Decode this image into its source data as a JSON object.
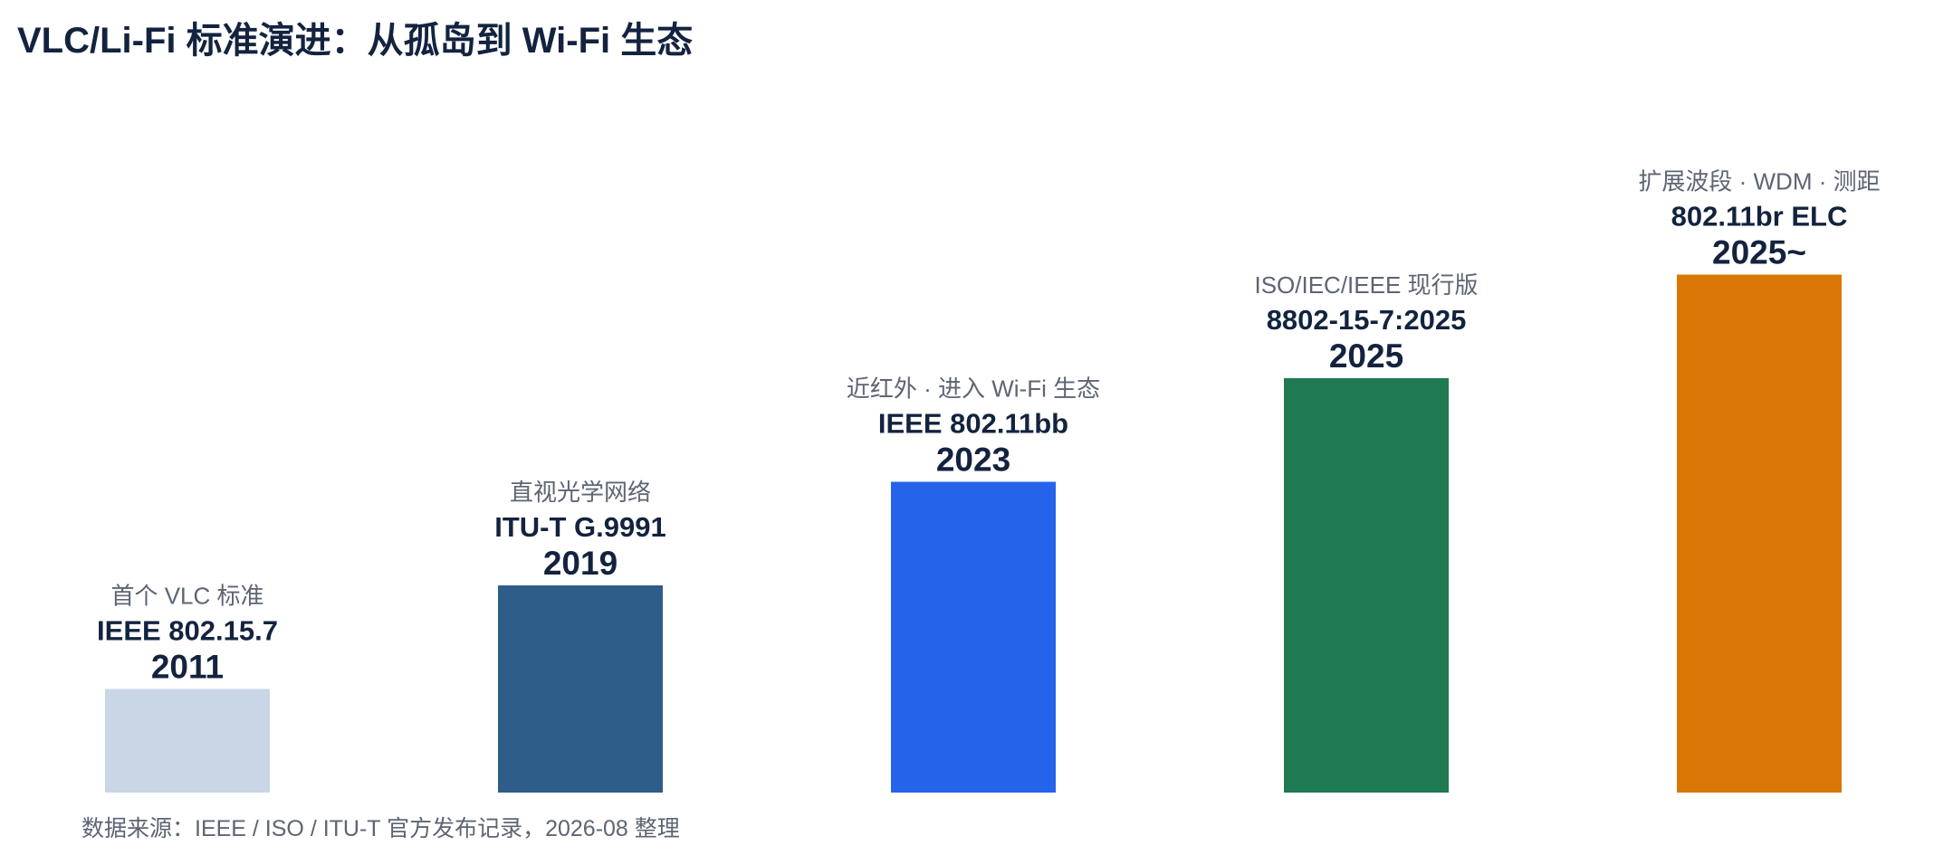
{
  "title": "VLC/Li-Fi 标准演进：从孤岛到 Wi-Fi 生态",
  "footer": "数据来源：IEEE / ISO / ITU-T 官方发布记录，2026-08 整理",
  "chart_data": {
    "type": "bar",
    "title": "VLC/Li-Fi 标准演进：从孤岛到 Wi-Fi 生态",
    "xlabel": "",
    "ylabel": "",
    "grid": false,
    "legend": "none",
    "categories": [
      "2011",
      "2019",
      "2023",
      "2025",
      "2025~"
    ],
    "values": [
      1,
      2,
      3,
      4,
      5
    ],
    "ylim": [
      0,
      5
    ],
    "series": [
      {
        "values": [
          1,
          2,
          3,
          4,
          5
        ]
      }
    ],
    "standards": [
      "IEEE 802.15.7",
      "ITU-T G.9991",
      "IEEE 802.11bb",
      "8802-15-7:2025",
      "802.11br ELC"
    ],
    "notes": [
      "首个 VLC 标准",
      "直视光学网络",
      "近红外 · 进入 Wi-Fi 生态",
      "ISO/IEC/IEEE 现行版",
      "扩展波段 · WDM · 测距"
    ],
    "colors": [
      "#c8d6e6",
      "#2f5d8a",
      "#2563eb",
      "#1f7a51",
      "#d97706"
    ]
  },
  "theme": {
    "text_dark": "#13233f",
    "text_muted": "#5d6573"
  }
}
